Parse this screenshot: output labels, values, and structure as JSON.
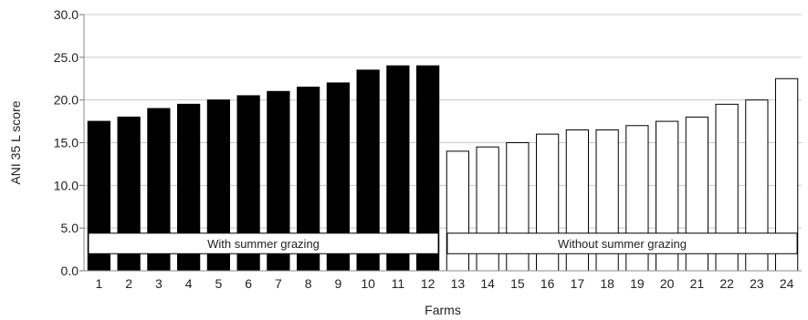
{
  "chart_data": {
    "type": "bar",
    "title": "",
    "xlabel": "Farms",
    "ylabel": "ANI 35 L score",
    "ylim": [
      0,
      30
    ],
    "yticks": [
      "0.0",
      "5.0",
      "10.0",
      "15.0",
      "20.0",
      "25.0",
      "30.0"
    ],
    "grid": "horizontal",
    "categories": [
      "1",
      "2",
      "3",
      "4",
      "5",
      "6",
      "7",
      "8",
      "9",
      "10",
      "11",
      "12",
      "13",
      "14",
      "15",
      "16",
      "17",
      "18",
      "19",
      "20",
      "21",
      "22",
      "23",
      "24"
    ],
    "values": [
      17.5,
      18.0,
      19.0,
      19.5,
      20.0,
      20.5,
      21.0,
      21.5,
      22.0,
      23.5,
      24.0,
      24.0,
      14.0,
      14.5,
      15.0,
      16.0,
      16.5,
      16.5,
      17.0,
      17.5,
      18.0,
      19.5,
      20.0,
      22.5
    ],
    "groups": [
      {
        "label": "With summer grazing",
        "categories": [
          "1",
          "2",
          "3",
          "4",
          "5",
          "6",
          "7",
          "8",
          "9",
          "10",
          "11",
          "12"
        ],
        "fill": "#000000"
      },
      {
        "label": "Without summer grazing",
        "categories": [
          "13",
          "14",
          "15",
          "16",
          "17",
          "18",
          "19",
          "20",
          "21",
          "22",
          "23",
          "24"
        ],
        "fill": "#ffffff"
      }
    ]
  }
}
